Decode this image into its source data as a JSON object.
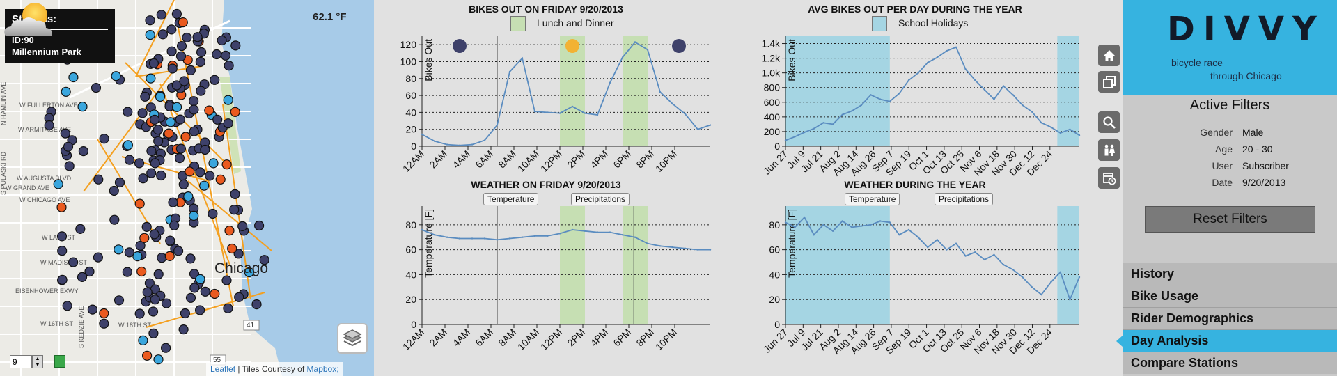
{
  "map": {
    "station_box_title": "Stations:",
    "station_id": "ID:90",
    "station_name": "Millennium Park",
    "temperature": "62.1 °F",
    "city_label": "Chicago",
    "attribution_leaflet": "Leaflet",
    "attribution_sep": " | Tiles Courtesy of ",
    "attribution_mapbox": "Mapbox;",
    "zoom_value": "9",
    "street_labels": [
      "W FULLERTON AVE",
      "W ARMITAGE AVE",
      "W AUGUSTA BLVD",
      "W CHICAGO AVE",
      "W GRAND AVE",
      "W LAKE ST",
      "W MADISON ST",
      "EISENHOWER EXWY",
      "W 18TH ST",
      "W 16TH ST",
      "S PULASKI RD",
      "N HAMLIN AVE",
      "S KEDZIE AVE"
    ],
    "route_labels": [
      "41",
      "55"
    ],
    "colors": {
      "water": "#a7cbe8",
      "land": "#ecebe6",
      "park": "#cfe2b7",
      "route": "#f4a020",
      "station_dark": "#3e416a",
      "station_blue": "#3aa6dd",
      "station_orange": "#ea5a1f"
    }
  },
  "charts": {
    "bikes_day": {
      "title": "BIKES OUT ON FRIDAY 9/20/2013",
      "legend": "Lunch and Dinner"
    },
    "bikes_year": {
      "title": "AVG BIKES OUT PER DAY DURING THE YEAR",
      "legend": "School Holidays"
    },
    "weather_day": {
      "title": "WEATHER ON FRIDAY 9/20/2013",
      "tag1": "Temperature",
      "tag2": "Precipitations"
    },
    "weather_year": {
      "title": "WEATHER DURING THE YEAR",
      "tag1": "Temperature",
      "tag2": "Precipitations"
    }
  },
  "chart_data": [
    {
      "type": "line",
      "title": "BIKES OUT ON FRIDAY 9/20/2013",
      "ylabel": "Bikes Out",
      "xlabel": "",
      "ylim": [
        0,
        130
      ],
      "yticks": [
        0,
        20,
        40,
        60,
        80,
        100,
        120
      ],
      "x_tick_labels": [
        "12AM",
        "2AM",
        "4AM",
        "6AM",
        "8AM",
        "10AM",
        "12PM",
        "2PM",
        "4PM",
        "6PM",
        "8PM",
        "10PM"
      ],
      "x_hours": [
        0,
        1,
        2,
        3,
        4,
        5,
        6,
        7,
        8,
        9,
        10,
        11,
        12,
        13,
        14,
        15,
        16,
        17,
        18,
        19,
        20,
        21,
        22,
        23
      ],
      "values": [
        14,
        6,
        2,
        1,
        2,
        7,
        25,
        88,
        104,
        41,
        40,
        39,
        47,
        39,
        37,
        75,
        105,
        123,
        114,
        64,
        50,
        38,
        20,
        25
      ],
      "shaded_ranges": [
        [
          11,
          13
        ],
        [
          16,
          18
        ]
      ],
      "vertical_line_hours": [
        6
      ],
      "legend": {
        "label": "Lunch and Dinner",
        "color": "#c6dfb3"
      },
      "markers": [
        {
          "hour": 3,
          "color": "#3e416a"
        },
        {
          "hour": 12,
          "color": "#f2b233"
        },
        {
          "hour": 20.5,
          "color": "#3e416a"
        }
      ],
      "grid": "horizontal dotted"
    },
    {
      "type": "line",
      "title": "AVG BIKES OUT PER DAY DURING THE YEAR",
      "ylabel": "Bikes Out",
      "ylim": [
        0,
        1500
      ],
      "yticks": [
        0,
        200,
        400,
        600,
        800,
        1000,
        1200,
        1400
      ],
      "ytick_labels": [
        "0",
        "200",
        "400",
        "600",
        "800",
        "1.0k",
        "1.2k",
        "1.4k"
      ],
      "x_tick_labels": [
        "Jun 27",
        "Jul 9",
        "Jul 21",
        "Aug 2",
        "Aug 14",
        "Aug 26",
        "Sep 7",
        "Sep 19",
        "Oct 1",
        "Oct 13",
        "Oct 25",
        "Nov 6",
        "Nov 18",
        "Nov 30",
        "Dec 12",
        "Dec 24"
      ],
      "x": [
        "Jun 27",
        "Jul 3",
        "Jul 9",
        "Jul 15",
        "Jul 21",
        "Jul 27",
        "Aug 2",
        "Aug 8",
        "Aug 14",
        "Aug 20",
        "Aug 26",
        "Sep 1",
        "Sep 7",
        "Sep 13",
        "Sep 19",
        "Sep 25",
        "Oct 1",
        "Oct 7",
        "Oct 13",
        "Oct 19",
        "Oct 25",
        "Oct 31",
        "Nov 6",
        "Nov 12",
        "Nov 18",
        "Nov 24",
        "Nov 30",
        "Dec 6",
        "Dec 12",
        "Dec 18",
        "Dec 24",
        "Dec 30"
      ],
      "values": [
        80,
        130,
        190,
        240,
        320,
        300,
        430,
        480,
        560,
        700,
        640,
        610,
        720,
        900,
        1000,
        1140,
        1210,
        1300,
        1350,
        1050,
        900,
        770,
        640,
        820,
        700,
        560,
        470,
        320,
        260,
        180,
        230,
        150
      ],
      "shaded_ranges": [
        [
          "Jun 27",
          "Aug 31"
        ],
        [
          "Dec 16",
          "Dec 30"
        ]
      ],
      "legend": {
        "label": "School Holidays",
        "color": "#a5d5e3"
      },
      "grid": "horizontal dotted"
    },
    {
      "type": "line",
      "title": "WEATHER ON FRIDAY 9/20/2013",
      "ylabel": "Temperature [F]",
      "ylim": [
        0,
        95
      ],
      "yticks": [
        0,
        20,
        40,
        60,
        80
      ],
      "x_tick_labels": [
        "12AM",
        "2AM",
        "4AM",
        "6AM",
        "8AM",
        "10AM",
        "12PM",
        "2PM",
        "4PM",
        "6PM",
        "8PM",
        "10PM"
      ],
      "x_hours": [
        0,
        1,
        2,
        3,
        4,
        5,
        6,
        7,
        8,
        9,
        10,
        11,
        12,
        13,
        14,
        15,
        16,
        17,
        18,
        19,
        20,
        21,
        22,
        23
      ],
      "values": [
        76,
        72,
        70,
        69,
        69,
        69,
        68,
        69,
        70,
        71,
        71,
        73,
        76,
        75,
        74,
        74,
        72,
        70,
        65,
        63,
        62,
        61,
        60,
        60
      ],
      "shaded_ranges": [
        [
          11,
          13
        ],
        [
          16,
          18
        ]
      ],
      "vertical_line_hours": [
        6,
        16.9
      ],
      "legend": {
        "label": "Temperature"
      },
      "grid": "horizontal dotted"
    },
    {
      "type": "line",
      "title": "WEATHER DURING THE YEAR",
      "ylabel": "Temperature [F]",
      "ylim": [
        0,
        95
      ],
      "yticks": [
        0,
        20,
        40,
        60,
        80
      ],
      "x_tick_labels": [
        "Jun 27",
        "Jul 9",
        "Jul 21",
        "Aug 2",
        "Aug 14",
        "Aug 26",
        "Sep 7",
        "Sep 19",
        "Oct 1",
        "Oct 13",
        "Oct 25",
        "Nov 6",
        "Nov 18",
        "Nov 30",
        "Dec 12",
        "Dec 24"
      ],
      "x": [
        "Jun 27",
        "Jul 3",
        "Jul 9",
        "Jul 15",
        "Jul 21",
        "Jul 27",
        "Aug 2",
        "Aug 8",
        "Aug 14",
        "Aug 20",
        "Aug 26",
        "Sep 1",
        "Sep 7",
        "Sep 13",
        "Sep 19",
        "Sep 25",
        "Oct 1",
        "Oct 7",
        "Oct 13",
        "Oct 19",
        "Oct 25",
        "Oct 31",
        "Nov 6",
        "Nov 12",
        "Nov 18",
        "Nov 24",
        "Nov 30",
        "Dec 6",
        "Dec 12",
        "Dec 18",
        "Dec 24",
        "Dec 30"
      ],
      "values": [
        82,
        78,
        86,
        72,
        80,
        75,
        83,
        78,
        79,
        80,
        83,
        82,
        72,
        76,
        70,
        62,
        68,
        60,
        65,
        55,
        58,
        52,
        56,
        48,
        44,
        38,
        30,
        24,
        34,
        42,
        20,
        38
      ],
      "shaded_ranges": [
        [
          "Jun 27",
          "Aug 31"
        ],
        [
          "Dec 16",
          "Dec 30"
        ]
      ],
      "legend": {
        "label": "Temperature"
      },
      "grid": "horizontal dotted"
    }
  ],
  "toolbar": {
    "icons": [
      "home-icon",
      "copy-icon",
      "search-icon",
      "people-icon",
      "calendar-clock-icon"
    ]
  },
  "sidebar": {
    "brand_name": "DIVVY",
    "tagline1": "bicycle race",
    "tagline2": "through Chicago",
    "filters_title": "Active Filters",
    "filters": [
      {
        "key": "Gender",
        "value": "Male"
      },
      {
        "key": "Age",
        "value": "20 - 30"
      },
      {
        "key": "User",
        "value": "Subscriber"
      },
      {
        "key": "Date",
        "value": "9/20/2013"
      }
    ],
    "reset_label": "Reset Filters",
    "nav": [
      {
        "label": "History",
        "active": false
      },
      {
        "label": "Bike Usage",
        "active": false
      },
      {
        "label": "Rider Demographics",
        "active": false
      },
      {
        "label": "Day Analysis",
        "active": true
      },
      {
        "label": "Compare Stations",
        "active": false
      }
    ],
    "accent_color": "#36b3e0"
  }
}
